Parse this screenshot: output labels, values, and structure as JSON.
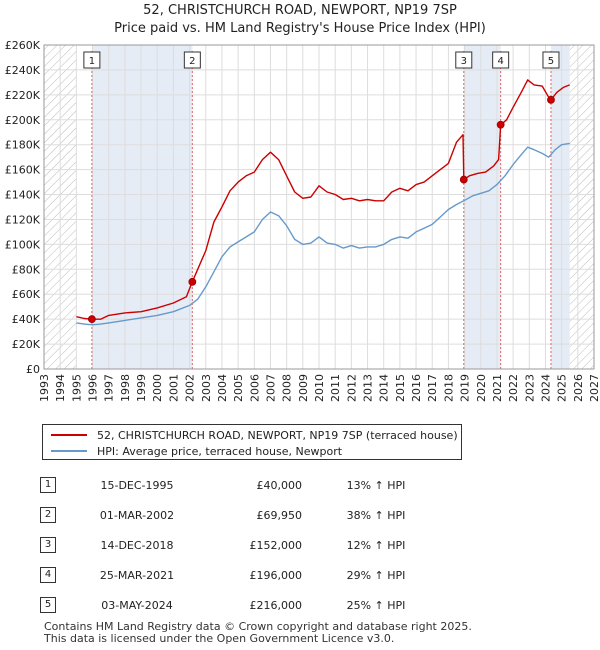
{
  "chart_data": {
    "type": "line",
    "title": "52, CHRISTCHURCH ROAD, NEWPORT, NP19 7SP",
    "subtitle": "Price paid vs. HM Land Registry's House Price Index (HPI)",
    "xlim": [
      1993,
      2027
    ],
    "ylim": [
      0,
      260000
    ],
    "x_ticks": [
      1993,
      1994,
      1995,
      1996,
      1997,
      1998,
      1999,
      2000,
      2001,
      2002,
      2003,
      2004,
      2005,
      2006,
      2007,
      2008,
      2009,
      2010,
      2011,
      2012,
      2013,
      2014,
      2015,
      2016,
      2017,
      2018,
      2019,
      2020,
      2021,
      2022,
      2023,
      2024,
      2025,
      2026,
      2027
    ],
    "y_ticks": [
      0,
      20000,
      40000,
      60000,
      80000,
      100000,
      120000,
      140000,
      160000,
      180000,
      200000,
      220000,
      240000,
      260000
    ],
    "y_tick_labels": [
      "£0",
      "£20K",
      "£40K",
      "£60K",
      "£80K",
      "£100K",
      "£120K",
      "£140K",
      "£160K",
      "£180K",
      "£200K",
      "£220K",
      "£240K",
      "£260K"
    ],
    "data_range": [
      1995.0,
      2025.5
    ],
    "series": [
      {
        "name": "52, CHRISTCHURCH ROAD, NEWPORT, NP19 7SP (terraced house)",
        "color": "#cc0000",
        "points": [
          [
            1995.0,
            42000
          ],
          [
            1995.5,
            40500
          ],
          [
            1995.96,
            40000
          ],
          [
            1996.5,
            40000
          ],
          [
            1997.0,
            43000
          ],
          [
            1998.0,
            45000
          ],
          [
            1999.0,
            46000
          ],
          [
            2000.0,
            49000
          ],
          [
            2001.0,
            53000
          ],
          [
            2001.8,
            58000
          ],
          [
            2002.17,
            69950
          ],
          [
            2002.5,
            80000
          ],
          [
            2003.0,
            95000
          ],
          [
            2003.5,
            118000
          ],
          [
            2004.0,
            130000
          ],
          [
            2004.5,
            143000
          ],
          [
            2005.0,
            150000
          ],
          [
            2005.5,
            155000
          ],
          [
            2006.0,
            158000
          ],
          [
            2006.5,
            168000
          ],
          [
            2007.0,
            174000
          ],
          [
            2007.5,
            168000
          ],
          [
            2008.0,
            155000
          ],
          [
            2008.5,
            142000
          ],
          [
            2009.0,
            137000
          ],
          [
            2009.5,
            138000
          ],
          [
            2010.0,
            147000
          ],
          [
            2010.5,
            142000
          ],
          [
            2011.0,
            140000
          ],
          [
            2011.5,
            136000
          ],
          [
            2012.0,
            137000
          ],
          [
            2012.5,
            135000
          ],
          [
            2013.0,
            136000
          ],
          [
            2013.5,
            135000
          ],
          [
            2014.0,
            135000
          ],
          [
            2014.5,
            142000
          ],
          [
            2015.0,
            145000
          ],
          [
            2015.5,
            143000
          ],
          [
            2016.0,
            148000
          ],
          [
            2016.5,
            150000
          ],
          [
            2017.0,
            155000
          ],
          [
            2017.5,
            160000
          ],
          [
            2018.0,
            165000
          ],
          [
            2018.5,
            182000
          ],
          [
            2018.9,
            188000
          ],
          [
            2018.95,
            152000
          ],
          [
            2019.3,
            155000
          ],
          [
            2019.8,
            157000
          ],
          [
            2020.3,
            158000
          ],
          [
            2020.8,
            163000
          ],
          [
            2021.1,
            168000
          ],
          [
            2021.23,
            196000
          ],
          [
            2021.6,
            200000
          ],
          [
            2022.0,
            210000
          ],
          [
            2022.5,
            222000
          ],
          [
            2022.9,
            232000
          ],
          [
            2023.3,
            228000
          ],
          [
            2023.8,
            227000
          ],
          [
            2024.2,
            218000
          ],
          [
            2024.34,
            216000
          ],
          [
            2024.7,
            222000
          ],
          [
            2025.1,
            226000
          ],
          [
            2025.5,
            228000
          ]
        ]
      },
      {
        "name": "HPI: Average price, terraced house, Newport",
        "color": "#6699cc",
        "points": [
          [
            1995.0,
            37000
          ],
          [
            1995.5,
            36000
          ],
          [
            1996.0,
            35500
          ],
          [
            1996.5,
            36000
          ],
          [
            1997.0,
            37000
          ],
          [
            1998.0,
            39000
          ],
          [
            1999.0,
            41000
          ],
          [
            2000.0,
            43000
          ],
          [
            2001.0,
            46000
          ],
          [
            2002.0,
            51000
          ],
          [
            2002.5,
            56000
          ],
          [
            2003.0,
            66000
          ],
          [
            2003.5,
            78000
          ],
          [
            2004.0,
            90000
          ],
          [
            2004.5,
            98000
          ],
          [
            2005.0,
            102000
          ],
          [
            2005.5,
            106000
          ],
          [
            2006.0,
            110000
          ],
          [
            2006.5,
            120000
          ],
          [
            2007.0,
            126000
          ],
          [
            2007.5,
            123000
          ],
          [
            2008.0,
            115000
          ],
          [
            2008.5,
            104000
          ],
          [
            2009.0,
            100000
          ],
          [
            2009.5,
            101000
          ],
          [
            2010.0,
            106000
          ],
          [
            2010.5,
            101000
          ],
          [
            2011.0,
            100000
          ],
          [
            2011.5,
            97000
          ],
          [
            2012.0,
            99000
          ],
          [
            2012.5,
            97000
          ],
          [
            2013.0,
            98000
          ],
          [
            2013.5,
            98000
          ],
          [
            2014.0,
            100000
          ],
          [
            2014.5,
            104000
          ],
          [
            2015.0,
            106000
          ],
          [
            2015.5,
            105000
          ],
          [
            2016.0,
            110000
          ],
          [
            2016.5,
            113000
          ],
          [
            2017.0,
            116000
          ],
          [
            2017.5,
            122000
          ],
          [
            2018.0,
            128000
          ],
          [
            2018.5,
            132000
          ],
          [
            2018.95,
            135000
          ],
          [
            2019.5,
            139000
          ],
          [
            2020.0,
            141000
          ],
          [
            2020.5,
            143000
          ],
          [
            2021.0,
            148000
          ],
          [
            2021.5,
            155000
          ],
          [
            2022.0,
            164000
          ],
          [
            2022.5,
            172000
          ],
          [
            2022.9,
            178000
          ],
          [
            2023.3,
            176000
          ],
          [
            2023.8,
            173000
          ],
          [
            2024.2,
            170000
          ],
          [
            2024.6,
            176000
          ],
          [
            2025.0,
            180000
          ],
          [
            2025.5,
            181000
          ]
        ]
      }
    ],
    "sales": [
      {
        "num": "1",
        "x": 1995.96,
        "price": 40000,
        "date": "15-DEC-1995",
        "price_label": "£40,000",
        "hpi": "13% ↑ HPI"
      },
      {
        "num": "2",
        "x": 2002.17,
        "price": 69950,
        "date": "01-MAR-2002",
        "price_label": "£69,950",
        "hpi": "38% ↑ HPI"
      },
      {
        "num": "3",
        "x": 2018.95,
        "price": 152000,
        "date": "14-DEC-2018",
        "price_label": "£152,000",
        "hpi": "12% ↑ HPI"
      },
      {
        "num": "4",
        "x": 2021.23,
        "price": 196000,
        "date": "25-MAR-2021",
        "price_label": "£196,000",
        "hpi": "29% ↑ HPI"
      },
      {
        "num": "5",
        "x": 2024.34,
        "price": 216000,
        "date": "03-MAY-2024",
        "price_label": "£216,000",
        "hpi": "25% ↑ HPI"
      }
    ],
    "colors": {
      "grid": "#dddddd",
      "shade": "#dde6f2",
      "hatch": "#bbbbbb",
      "sale_line": "#e06666",
      "sale_marker": "#cc0000"
    }
  },
  "legend": {
    "red_label": "52, CHRISTCHURCH ROAD, NEWPORT, NP19 7SP (terraced house)",
    "blue_label": "HPI: Average price, terraced house, Newport"
  },
  "footer": {
    "line1": "Contains HM Land Registry data © Crown copyright and database right 2025.",
    "line2": "This data is licensed under the Open Government Licence v3.0."
  }
}
